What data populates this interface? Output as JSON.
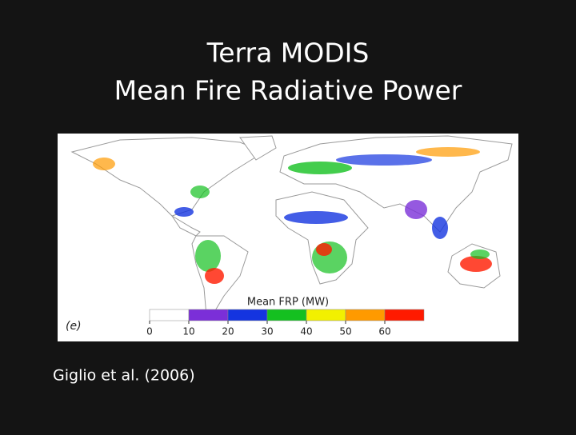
{
  "slide": {
    "title_lines": [
      "Terra MODIS",
      "Mean Fire Radiative Power"
    ],
    "citation": "Giglio et al. (2006)"
  },
  "map": {
    "panel_label": "(e)",
    "legend": {
      "title": "Mean FRP (MW)",
      "ticks": [
        0,
        10,
        20,
        30,
        40,
        50,
        60
      ],
      "colors": [
        "#ffffff",
        "#7b2fd8",
        "#1434e0",
        "#14c020",
        "#f2f000",
        "#ff9a00",
        "#ff1a00"
      ]
    }
  }
}
